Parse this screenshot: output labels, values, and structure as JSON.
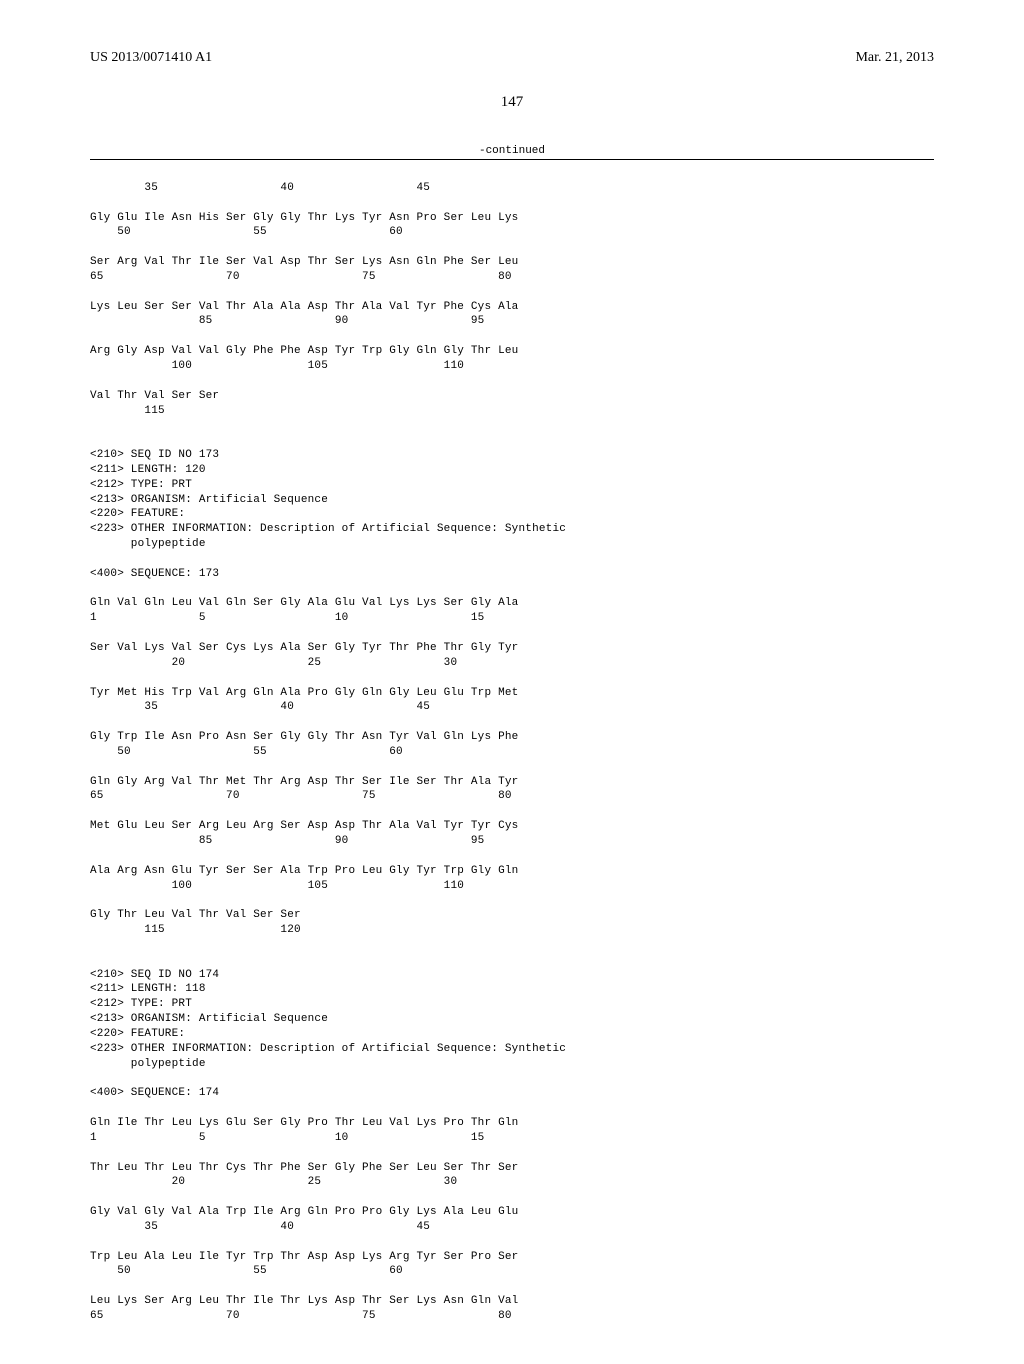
{
  "header": {
    "pub_id": "US 2013/0071410 A1",
    "pub_date": "Mar. 21, 2013",
    "page_number": "147"
  },
  "continued_label": "-continued",
  "seq172_tail": {
    "line1_nums": "        35                  40                  45",
    "row1": "Gly Glu Ile Asn His Ser Gly Gly Thr Lys Tyr Asn Pro Ser Leu Lys",
    "row1_nums": "    50                  55                  60",
    "row2": "Ser Arg Val Thr Ile Ser Val Asp Thr Ser Lys Asn Gln Phe Ser Leu",
    "row2_nums": "65                  70                  75                  80",
    "row3": "Lys Leu Ser Ser Val Thr Ala Ala Asp Thr Ala Val Tyr Phe Cys Ala",
    "row3_nums": "                85                  90                  95",
    "row4": "Arg Gly Asp Val Val Gly Phe Phe Asp Tyr Trp Gly Gln Gly Thr Leu",
    "row4_nums": "            100                 105                 110",
    "row5": "Val Thr Val Ser Ser",
    "row5_nums": "        115"
  },
  "seq173_header": {
    "l1": "<210> SEQ ID NO 173",
    "l2": "<211> LENGTH: 120",
    "l3": "<212> TYPE: PRT",
    "l4": "<213> ORGANISM: Artificial Sequence",
    "l5": "<220> FEATURE:",
    "l6": "<223> OTHER INFORMATION: Description of Artificial Sequence: Synthetic",
    "l7": "      polypeptide",
    "l8": "<400> SEQUENCE: 173"
  },
  "seq173": {
    "row1": "Gln Val Gln Leu Val Gln Ser Gly Ala Glu Val Lys Lys Ser Gly Ala",
    "row1_nums": "1               5                   10                  15",
    "row2": "Ser Val Lys Val Ser Cys Lys Ala Ser Gly Tyr Thr Phe Thr Gly Tyr",
    "row2_nums": "            20                  25                  30",
    "row3": "Tyr Met His Trp Val Arg Gln Ala Pro Gly Gln Gly Leu Glu Trp Met",
    "row3_nums": "        35                  40                  45",
    "row4": "Gly Trp Ile Asn Pro Asn Ser Gly Gly Thr Asn Tyr Val Gln Lys Phe",
    "row4_nums": "    50                  55                  60",
    "row5": "Gln Gly Arg Val Thr Met Thr Arg Asp Thr Ser Ile Ser Thr Ala Tyr",
    "row5_nums": "65                  70                  75                  80",
    "row6": "Met Glu Leu Ser Arg Leu Arg Ser Asp Asp Thr Ala Val Tyr Tyr Cys",
    "row6_nums": "                85                  90                  95",
    "row7": "Ala Arg Asn Glu Tyr Ser Ser Ala Trp Pro Leu Gly Tyr Trp Gly Gln",
    "row7_nums": "            100                 105                 110",
    "row8": "Gly Thr Leu Val Thr Val Ser Ser",
    "row8_nums": "        115                 120"
  },
  "seq174_header": {
    "l1": "<210> SEQ ID NO 174",
    "l2": "<211> LENGTH: 118",
    "l3": "<212> TYPE: PRT",
    "l4": "<213> ORGANISM: Artificial Sequence",
    "l5": "<220> FEATURE:",
    "l6": "<223> OTHER INFORMATION: Description of Artificial Sequence: Synthetic",
    "l7": "      polypeptide",
    "l8": "<400> SEQUENCE: 174"
  },
  "seq174": {
    "row1": "Gln Ile Thr Leu Lys Glu Ser Gly Pro Thr Leu Val Lys Pro Thr Gln",
    "row1_nums": "1               5                   10                  15",
    "row2": "Thr Leu Thr Leu Thr Cys Thr Phe Ser Gly Phe Ser Leu Ser Thr Ser",
    "row2_nums": "            20                  25                  30",
    "row3": "Gly Val Gly Val Ala Trp Ile Arg Gln Pro Pro Gly Lys Ala Leu Glu",
    "row3_nums": "        35                  40                  45",
    "row4": "Trp Leu Ala Leu Ile Tyr Trp Thr Asp Asp Lys Arg Tyr Ser Pro Ser",
    "row4_nums": "    50                  55                  60",
    "row5": "Leu Lys Ser Arg Leu Thr Ile Thr Lys Asp Thr Ser Lys Asn Gln Val",
    "row5_nums": "65                  70                  75                  80"
  }
}
